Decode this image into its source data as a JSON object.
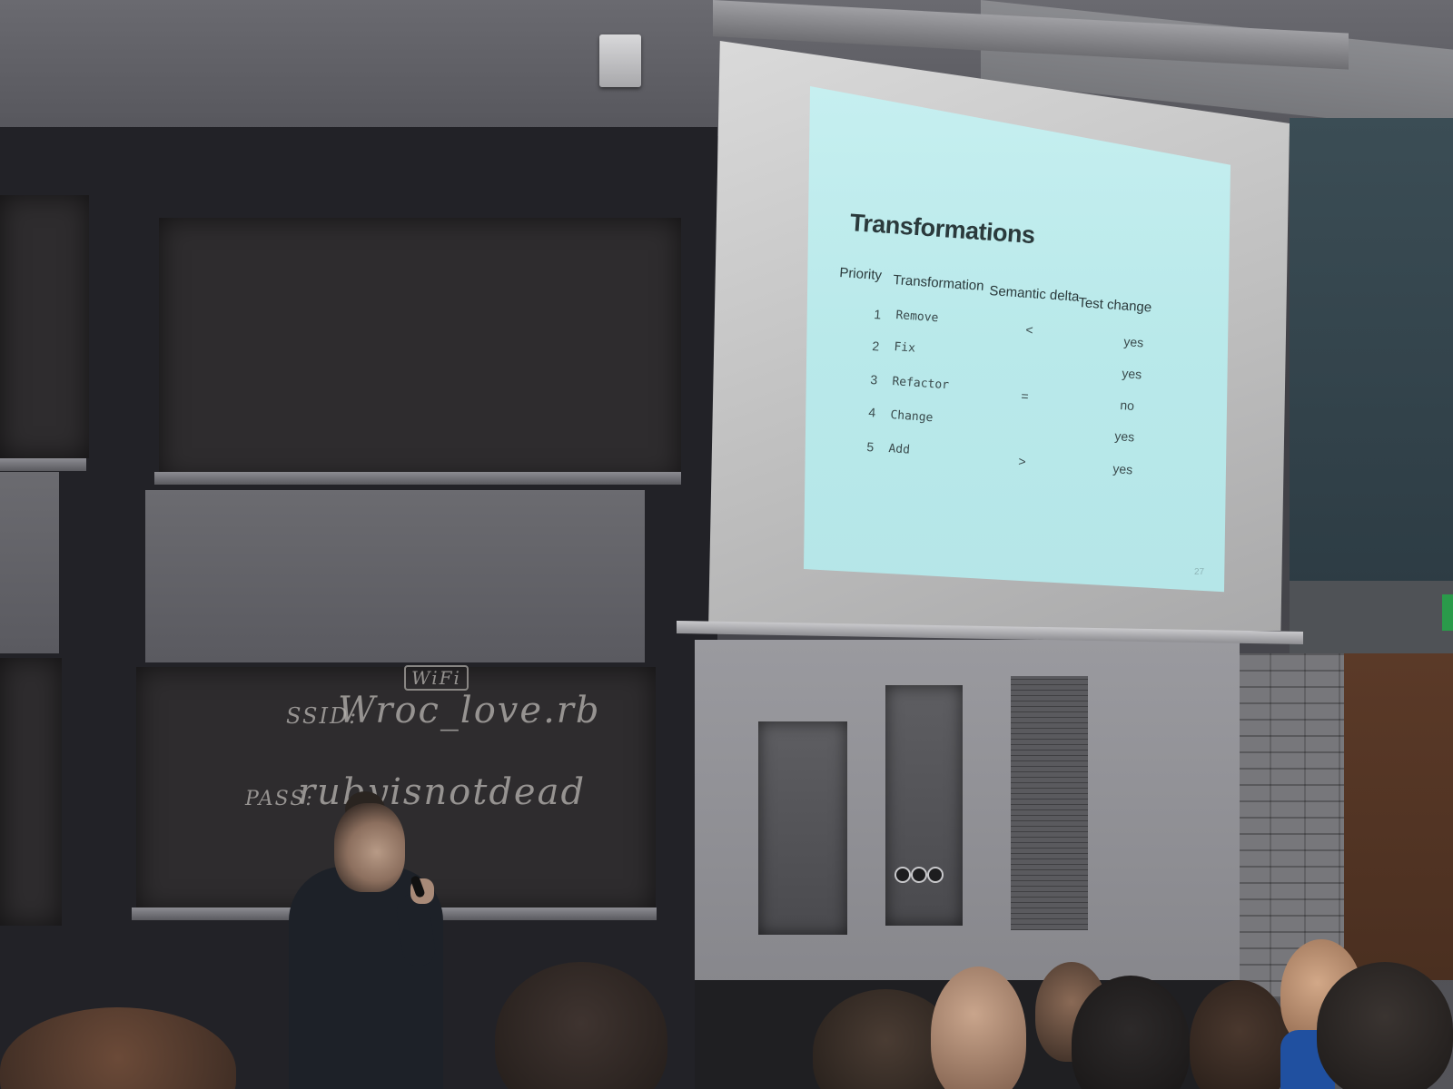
{
  "slide": {
    "title": "Transformations",
    "headers": [
      "Priority",
      "Transformation",
      "Semantic delta",
      "Test change"
    ],
    "rows": [
      {
        "priority": "1",
        "transformation": "Remove",
        "delta": "<",
        "test_change": "yes"
      },
      {
        "priority": "2",
        "transformation": "Fix",
        "delta": "",
        "test_change": "yes"
      },
      {
        "priority": "3",
        "transformation": "Refactor",
        "delta": "=",
        "test_change": "no"
      },
      {
        "priority": "4",
        "transformation": "Change",
        "delta": "",
        "test_change": "yes"
      },
      {
        "priority": "5",
        "transformation": "Add",
        "delta": ">",
        "test_change": "yes"
      }
    ],
    "page_number": "27"
  },
  "chalkboard": {
    "wifi_label": "WiFi",
    "ssid_label": "SSID:",
    "ssid_value": "Wroc_love.rb",
    "pass_label": "PASS:",
    "pass_value": "rubyisnotdead"
  },
  "colors": {
    "slide_bg": "#c6eff0",
    "slide_text": "#2b3a3c",
    "board": "#2e2c2e",
    "chalk": "#b9b6b2"
  }
}
